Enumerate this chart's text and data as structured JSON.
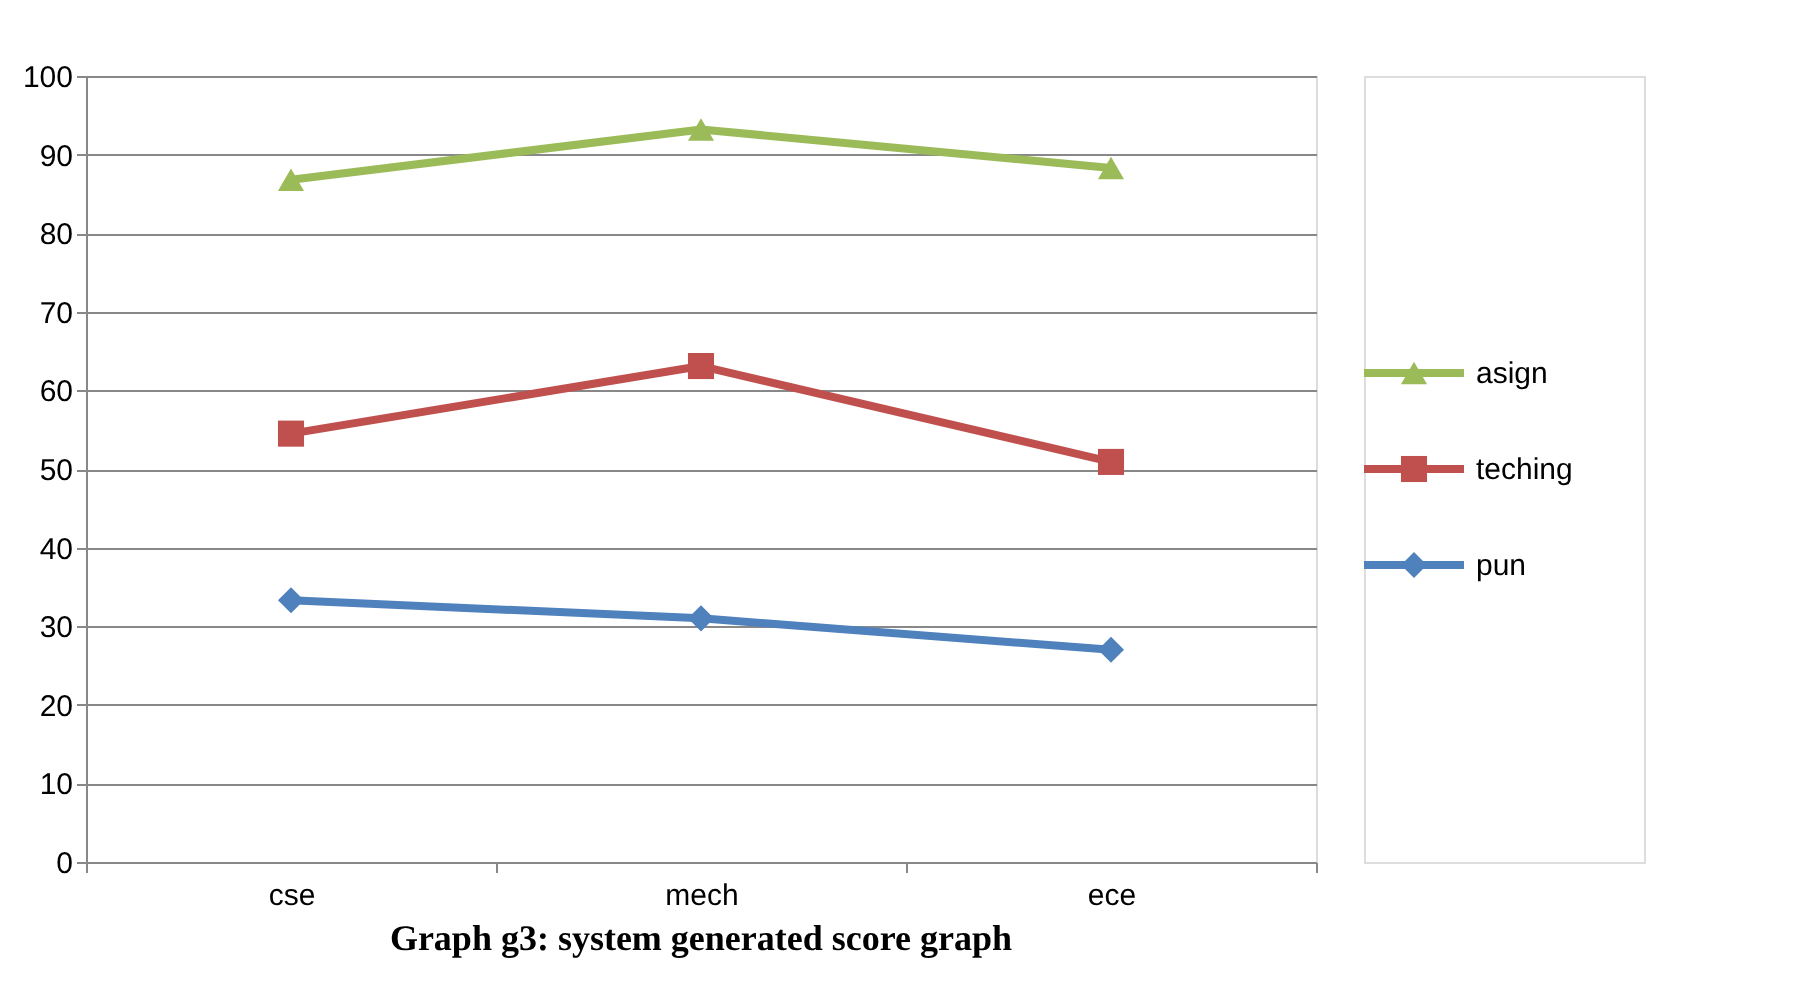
{
  "chart_data": {
    "type": "line",
    "title": "Graph g3: system generated score graph",
    "categories": [
      "cse",
      "mech",
      "ece"
    ],
    "series": [
      {
        "name": "asign",
        "color": "#9bbb59",
        "marker": "triangle",
        "values": [
          86.8,
          93.2,
          88.3
        ]
      },
      {
        "name": "teching",
        "color": "#c0504d",
        "marker": "square",
        "values": [
          54.5,
          63.1,
          50.9
        ]
      },
      {
        "name": "pun",
        "color": "#4f81bd",
        "marker": "diamond",
        "values": [
          33.3,
          31.0,
          27.0
        ]
      }
    ],
    "ylim": [
      0,
      100
    ],
    "yticks": [
      0,
      10,
      20,
      30,
      40,
      50,
      60,
      70,
      80,
      90,
      100
    ],
    "grid": "y",
    "legend": "right",
    "line_style": "solid"
  }
}
